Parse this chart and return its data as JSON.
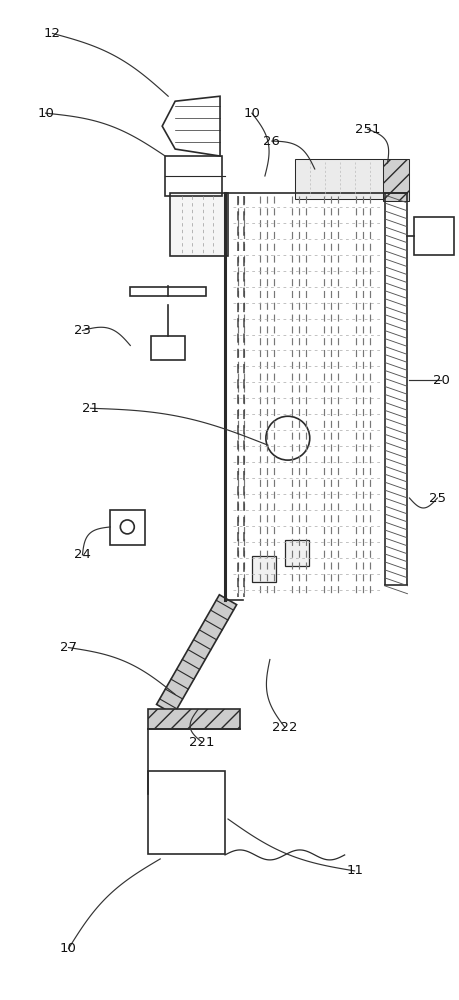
{
  "bg_color": "#ffffff",
  "lc": "#2a2a2a",
  "fig_width": 4.6,
  "fig_height": 10.0,
  "dpi": 100
}
